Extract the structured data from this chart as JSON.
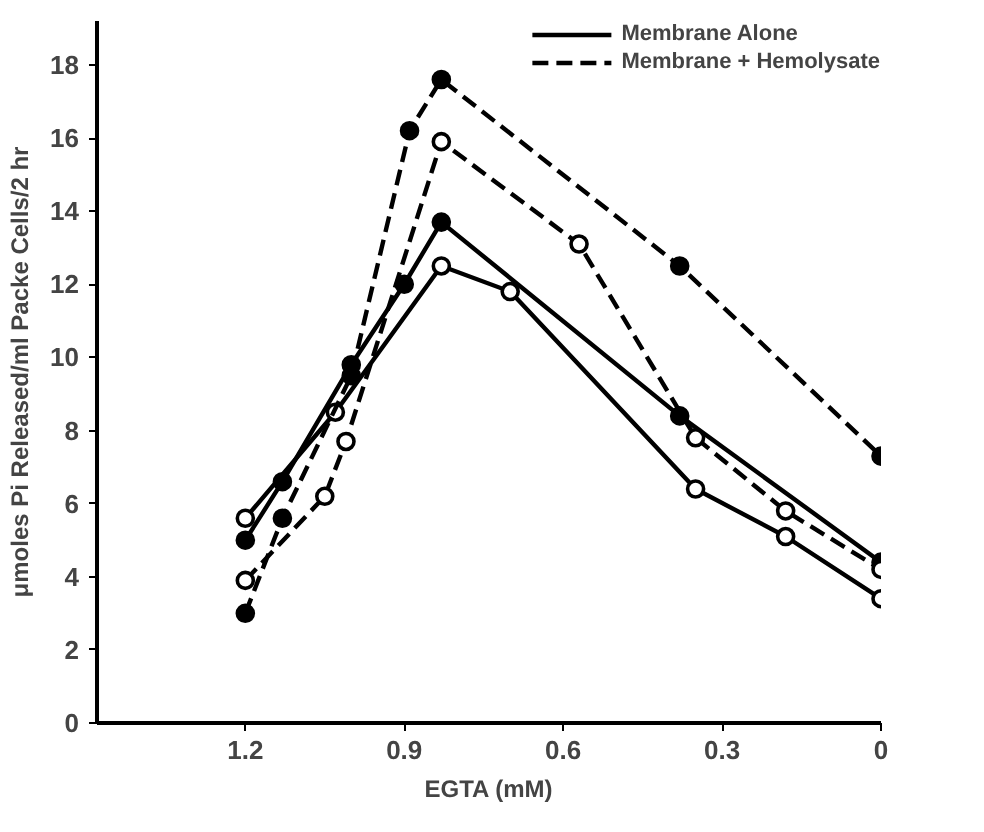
{
  "chart_data": {
    "type": "line",
    "xlabel": "EGTA (mM)",
    "ylabel": "μmoles Pi Released/ml Packe Cells/2 hr",
    "xlim": [
      1.48,
      0
    ],
    "xticks": [
      1.2,
      0.9,
      0.6,
      0.3,
      0
    ],
    "ylim": [
      0,
      19.2
    ],
    "yticks": [
      0,
      2,
      4,
      6,
      8,
      10,
      12,
      14,
      16,
      18
    ],
    "legend": "top right",
    "series": [
      {
        "name": "Membrane Alone",
        "color": "#000000",
        "line_style": "solid",
        "marker": "circle",
        "x": [
          1.2,
          1.13,
          1.0,
          0.9,
          0.83,
          0.38,
          0
        ],
        "values": [
          5.0,
          6.6,
          9.8,
          12.0,
          13.7,
          8.4,
          4.4
        ]
      },
      {
        "color": "#000000",
        "line_style": "solid",
        "marker": "circle_open",
        "x": [
          1.2,
          1.03,
          0.83,
          0.7,
          0.35,
          0.18,
          0
        ],
        "values": [
          5.6,
          8.5,
          12.5,
          11.8,
          6.4,
          5.1,
          3.4
        ]
      },
      {
        "name": "Membrane + Hemolysate",
        "color": "#000000",
        "line_style": "dashed",
        "marker": "circle",
        "x": [
          1.2,
          1.13,
          1.0,
          0.89,
          0.83,
          0.38,
          0
        ],
        "values": [
          3.0,
          5.6,
          9.5,
          16.2,
          17.6,
          12.5,
          7.3
        ]
      },
      {
        "color": "#000000",
        "line_style": "dashed",
        "marker": "circle_open",
        "x": [
          1.2,
          1.05,
          1.01,
          0.83,
          0.57,
          0.35,
          0.18,
          0
        ],
        "values": [
          3.9,
          6.2,
          7.7,
          15.9,
          13.1,
          7.8,
          5.8,
          4.2
        ]
      }
    ]
  }
}
